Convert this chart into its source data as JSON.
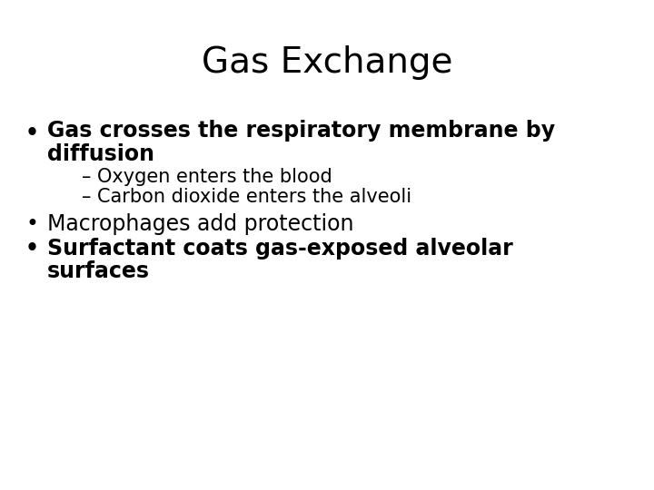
{
  "title": "Gas Exchange",
  "title_fontsize": 28,
  "title_fontweight": "normal",
  "background_color": "#ffffff",
  "text_color": "#000000",
  "bullet1_line1": "Gas crosses the respiratory membrane by",
  "bullet1_line2": "diffusion",
  "bullet1_fontsize": 17,
  "bullet1_fontweight": "bold",
  "sub1": "– Oxygen enters the blood",
  "sub2": "– Carbon dioxide enters the alveoli",
  "sub_fontsize": 15,
  "sub_fontweight": "normal",
  "bullet2": "Macrophages add protection",
  "bullet2_fontsize": 17,
  "bullet2_fontweight": "normal",
  "bullet3_line1": "Surfactant coats gas-exposed alveolar",
  "bullet3_line2": "surfaces",
  "bullet3_fontsize": 17,
  "bullet3_fontweight": "bold"
}
